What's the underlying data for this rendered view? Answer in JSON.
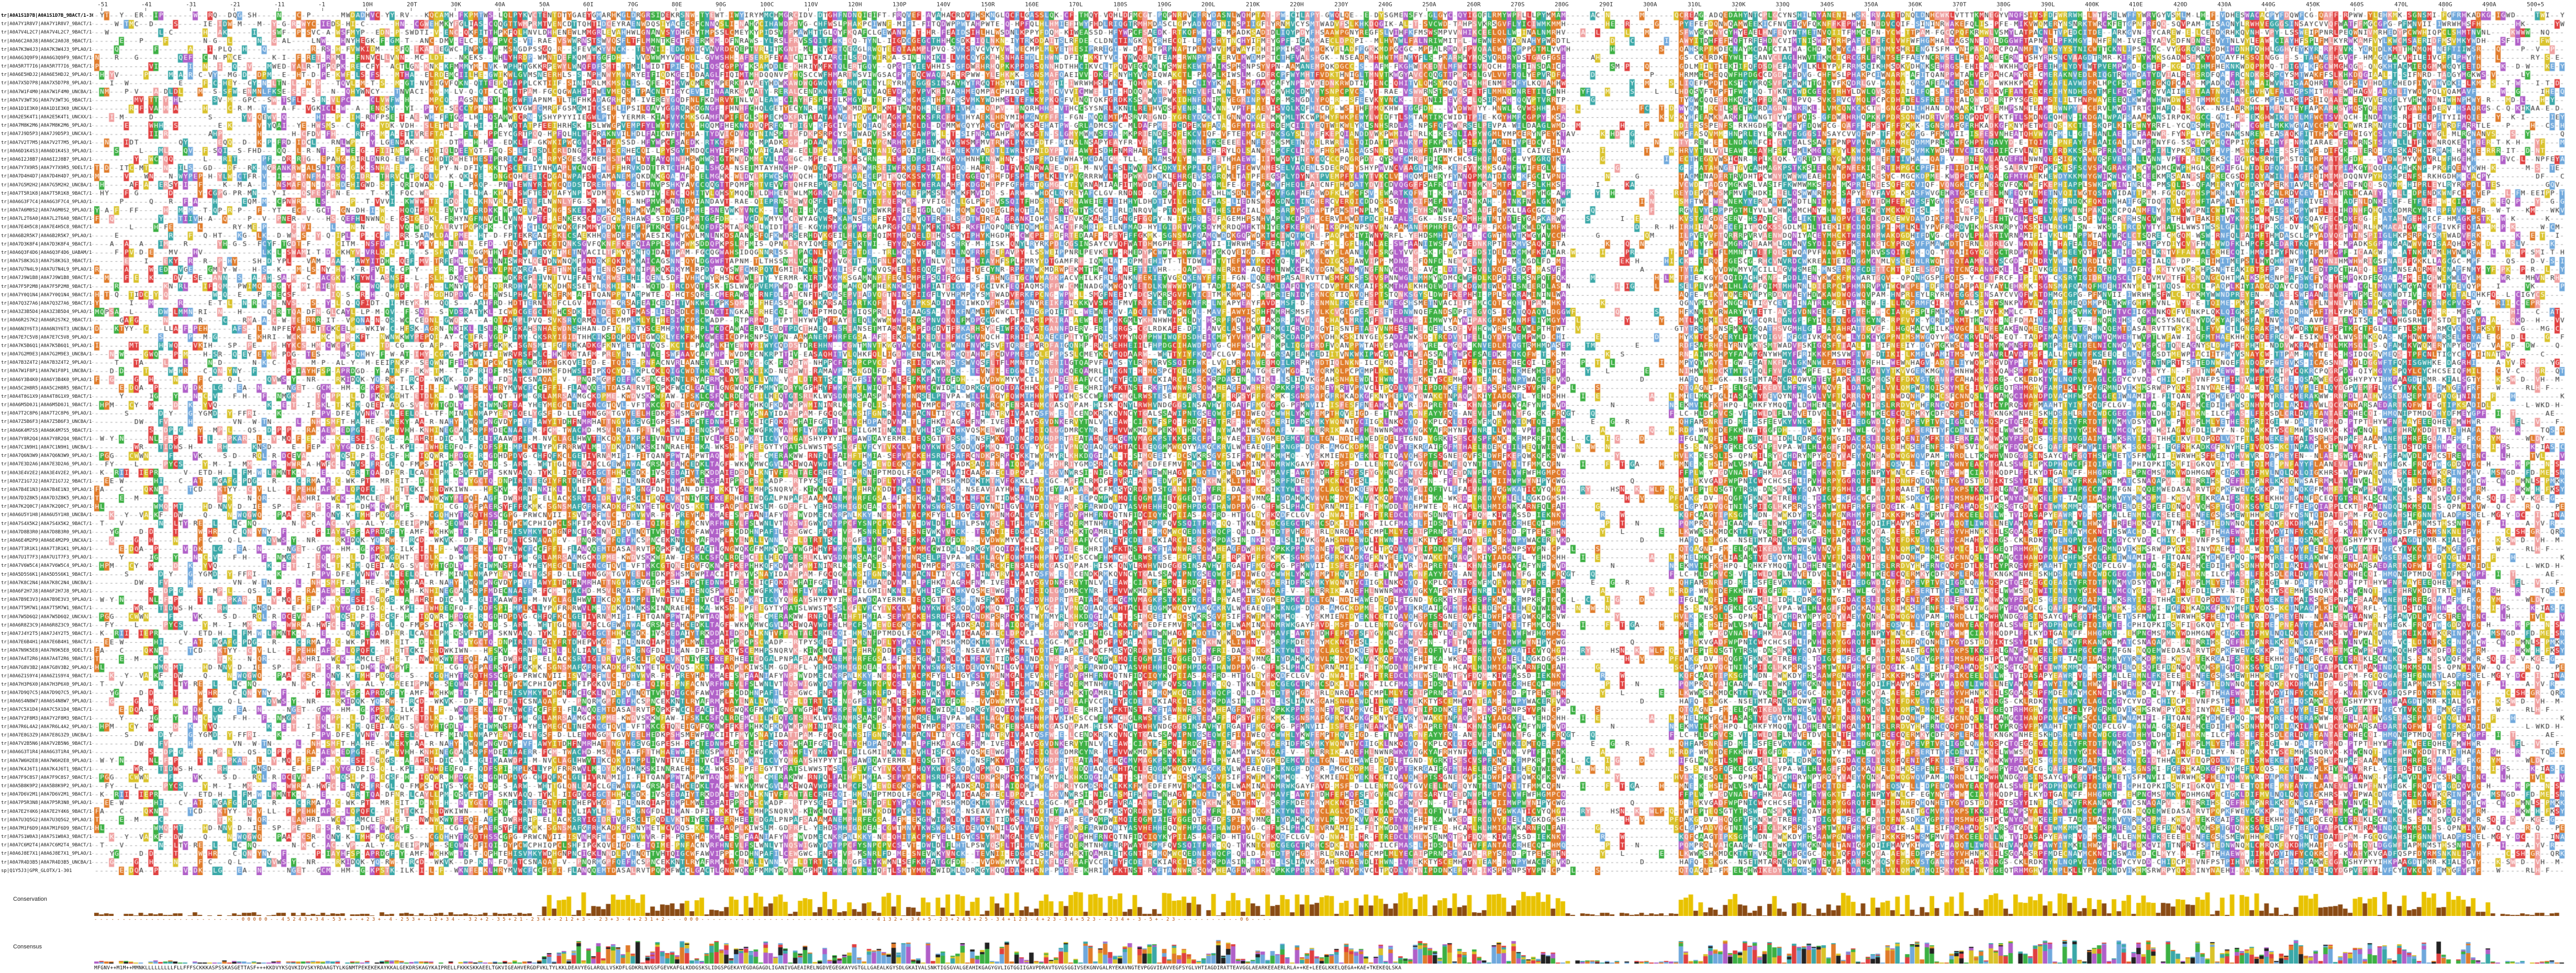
{
  "ruler": {
    "ticks": [
      "-51",
      "-41",
      "-31",
      "-21",
      "-11",
      "-1",
      "10H",
      "20T",
      "30K",
      "40A",
      "50A",
      "60I",
      "70G",
      "80E",
      "90G",
      "100C",
      "110V",
      "120H",
      "130P",
      "140V",
      "150R",
      "160E",
      "170L",
      "180S",
      "190G",
      "200L",
      "210K",
      "220H",
      "230Y",
      "240G",
      "250A",
      "260R",
      "270S",
      "280G",
      "290I",
      "300A",
      "310L",
      "320K",
      "330Q",
      "340S",
      "350A",
      "360K",
      "370T",
      "380G",
      "390L",
      "400K",
      "410E",
      "420D",
      "430A",
      "440G",
      "450K",
      "460S",
      "470L",
      "480G",
      "490A",
      "500+5"
    ]
  },
  "sequences": [
    {
      "name": "tr|A0A1S1D7B|A0A1S1D7B_9BACT/1-309",
      "ref": true
    },
    {
      "name": "tr|A0A7Y1R8V7|A0A7Y1R8V7_9BACT/1-309"
    },
    {
      "name": "tr|A0A7V4L2C7|A0A7V4L2C7_9BACT/1-324"
    },
    {
      "name": "tr|A0A6C2A0J8|A0A6C2A0J8_9BACT/1-318"
    },
    {
      "name": "tr|A0A7K3W4J3|A0A7K3W4J3_9PLAO/1-322"
    },
    {
      "name": "tr|A0A6G3Q9F9|A0A6G3Q9F9_9BACT/1-319"
    },
    {
      "name": "tr|A0A5R7T7I6|A0A5R7T7I6_9BACT/1-31"
    },
    {
      "name": "tr|A0A6E5HDJ2|A0A6E5HDJ2_9PLAO/1-318"
    },
    {
      "name": "tr|A0A7X5D7P8|A0A7X5D7P8_9PLAO/1-316"
    },
    {
      "name": "tr|A0A7W1F4M0|A0A7W1F4M0_UNCBA/1-312"
    },
    {
      "name": "tr|A0A7V3WT3G|A0A7V3WT3G_9BACT/1-340"
    },
    {
      "name": "tr|A0A1D1E3K0|A0A1D1E3K0_UNCXA/1-334"
    },
    {
      "name": "tr|A0A2E5K4T1|A0A2E5K4T1_UNCXX/1-309"
    },
    {
      "name": "tr|A0A7M8K2M6|A0A7M8K2M6_9PLAO/1-328"
    },
    {
      "name": "tr|A0A7J9D5P3|A0A7J9D5P3_UNCXA/1-307"
    },
    {
      "name": "tr|A0A7V2T7M5|A0A7V2T7M5_9PLAO/1-348"
    },
    {
      "name": "tr|A0A6D1K4S3|A0A6D1K4S3_9PLAO/1-306"
    },
    {
      "name": "tr|A0A6I2J8B7|A0A6I2J8B7_9PLAO/1-304"
    },
    {
      "name": "tr|A0A7Y7X9R5|A0A7Y7X9R5_9DELT/1-309"
    },
    {
      "name": "tr|A0A7D4H4D7|A0A7D4H4D7_9PLAO/1-343"
    },
    {
      "name": "tr|A0A7G5M2H2|A0A7G5M2H2_UNCBA/1-331"
    },
    {
      "name": "tr|A0A7T5R1K8|A0A7T5R1K8_9BACT/1-339"
    },
    {
      "name": "tr|A0A6G3F7C4|A0A6G3F7C4_9PLAO/1-335"
    },
    {
      "name": "tr|A0A7A6M0S2|A0A7A6M0S2_9PLAO/1-317"
    },
    {
      "name": "tr|A0A7L2T6A0|A0A7L2T6A0_9BACT/1-317"
    },
    {
      "name": "tr|A0A7E4H5C8|A0A7E4H5C8_9BACT/1-307"
    },
    {
      "name": "tr|A0A6B2R5K7|A0A6B2R5K7_9PLAO/1-380"
    },
    {
      "name": "tr|A0A7D3K8F4|A0A7D3K8F4_9BACT/1-348"
    },
    {
      "name": "tr|A0A6Q3F4D6|A0A6Q3F4D6_UABAM/1-335"
    },
    {
      "name": "tr|A0A7S8K3G3|A0A7S8K3G3_9BACT/1-336"
    },
    {
      "name": "tr|A0A7U7N4L9|A0A7U7N4L9_9PLAO/1-342"
    },
    {
      "name": "tr|A0A7J9W1B8|A0A7J9W1B8_9BACT/1-329"
    },
    {
      "name": "tr|A0A7F5P2M8|A0A7F5P2M8_9BACT/1-318"
    },
    {
      "name": "tr|A0A7Y0Q1N4|A0A7Y0Q1N4_9BACT/1-301"
    },
    {
      "name": "tr|A0A7Q3Z7A6|A0A7Q3Z7A6_9BACT/1-316"
    },
    {
      "name": "tr|A0A3Z3B5D4|A0A3Z3B5D4_9PLAO/1-346"
    },
    {
      "name": "tr|A0A6R2S7K2|A0A6R2S7K2_9BACT/1-340"
    },
    {
      "name": "tr|A0A6N3Y6T3|A0A6N3Y6T3_UNCBA/1-342"
    },
    {
      "name": "tr|A0A7E7C5V8|A0A7E7C5V8_9PLAO/1-301"
    },
    {
      "name": "tr|A0A7K5B6Q1|A0A7K5B6Q1_9PLAO/1-345"
    },
    {
      "name": "tr|A0A7G2M9E3|A0A7G2M9E3_UNCBA/1-301"
    },
    {
      "name": "tr|A0A7B3Z4T2|A0A7B3Z4T2_9PLAO/1-333"
    },
    {
      "name": "tr|A0A7W1F8P1|A0A7W1F8P1_UNCBA/1-306"
    },
    {
      "name": "tr|A0A6Y3B4K0|A0A6Y3B4K0_9PLAO/1-309"
    },
    {
      "name": "tr|A0A5C2H8R5|A0A5C2H8R5_9BACT/1-322"
    },
    {
      "name": "tr|A0A4T8G1X9|A0A4T8G1X9_9BACT/1-304"
    },
    {
      "name": "tr|A0A6M5D0J1|A0A6M5D0J1_9BACT/1-317"
    },
    {
      "name": "tr|A0A7T2C8P6|A0A7T2C8P6_9PLAO/1-319"
    },
    {
      "name": "tr|A0A7Z5B6F3|A0A7Z5B6F3_UNCBA/1-317"
    },
    {
      "name": "tr|A0A6K4M7S5|A0A6K4M7S5_9BACT/1-328"
    },
    {
      "name": "tr|A0A7Y8R2Q4|A0A7Y8R2Q4_9BACT/1-331"
    },
    {
      "name": "tr|A0A7C1N9H1|A0A7C1N9H1_UNCBA/1-333"
    },
    {
      "name": "tr|A0A7Q6N3W9|A0A7Q6N3W9_9PLAO/1-301"
    },
    {
      "name": "tr|A0A7E3D2A6|A0A7E3D2A6_9PLAO/1-318"
    },
    {
      "name": "tr|A0A3E4V2E2|A0A3E4V2E2_9PLAO/1-308"
    },
    {
      "name": "tr|A0A7Z1G7J2|A0A7Z1G7J2_9BACT/1-314"
    },
    {
      "name": "tr|A0A7B4E1N3|A0A7B4E1N3_9PLAO/1-326"
    },
    {
      "name": "tr|A0A7D3Z8K5|A0A7D3Z8K5_9PLAO/1-301"
    },
    {
      "name": "tr|A0A7K2Q0C7|A0A7K2Q0C7_9PLAO/1-344"
    },
    {
      "name": "tr|A0A6U5Y1H8|A0A6U5Y1H8_UNCBA/1-337"
    },
    {
      "name": "tr|A0A7S4X5K2|A0A7S4X5K2_9BACT/1-365"
    },
    {
      "name": "tr|A0A7D8B3R0|A0A7D8B3R0_9PLAO/1-315"
    },
    {
      "name": "tr|A0A6E4M2P9|A0A6E4M2P9_UNCXA/1-317"
    },
    {
      "name": "tr|A0A7T3R1K1|A0A7T3R1K1_9PLAO/1-313"
    },
    {
      "name": "tr|A0A7U1T7F3|A0A7U1T7F3_9PLAO/1-312"
    },
    {
      "name": "tr|A0A7V6W5C4|A0A7V6W5C4_9PLAO/1-328"
    },
    {
      "name": "tr|A0A5D5S6K1|A0A5D5S6K1_9BACT/1-301"
    },
    {
      "name": "tr|A0A7K8C2N4|A0A7K8C2N4_UNCBA/1-331"
    },
    {
      "name": "tr|A0A6F2H7J8|A0A6F2H7J8_9PLAO/1-307"
    },
    {
      "name": "tr|A0A7B9E3V3|A0A7B9E3V3_9PLAO/1-312"
    },
    {
      "name": "tr|A0A7T5M7W1|A0A7T5M7W1_9BACT/1-313"
    },
    {
      "name": "tr|A0A7W5D6Q2|A0A7W5D6Q2_UNCXA/1-315"
    },
    {
      "name": "tr|A0A6R8Z3C9|A0A6R8Z3C9_9BACT/1-310"
    },
    {
      "name": "tr|A0A7J4Y2T5|A0A7J4Y2T5_9BACT/1-309"
    },
    {
      "name": "tr|A0A7E6B4H1|A0A7E6B4H1_9BACT/1-323"
    },
    {
      "name": "tr|A0A7N9K5E8|A0A7N9K5E8_9DELT/1-311"
    },
    {
      "name": "tr|A0A7A4T2R6|A0A7A4T2R6_9BACT/1-316"
    },
    {
      "name": "tr|A0A7G8V3B2|A0A7G8V3B2_9PLAO/1-313"
    },
    {
      "name": "tr|A0A6Z1S9Y4|A0A6Z1S9Y4_9BACT/1-322"
    },
    {
      "name": "tr|A0A7H3P6X0|A0A7H3P6X0_9PLAO/1-331"
    },
    {
      "name": "tr|A0A7D9Q7C5|A0A7D9Q7C5_9PLAO/1-308"
    },
    {
      "name": "tr|A0A6S4N8W7|A0A6S4N8W7_9PLAO/1-319"
    },
    {
      "name": "tr|A0A7C5X1D4|A0A7C5X1D4_9BACT/1-309"
    },
    {
      "name": "tr|A0A7Y2F8M3|A0A7Y2F8M3_9BACT/1-311"
    },
    {
      "name": "tr|A0A7R6L4A2|A0A7R6L4A2_9PLAO/1-301"
    },
    {
      "name": "tr|A0A7E8G3Z9|A0A7E8G3Z9_UNCBA/1-317"
    },
    {
      "name": "tr|A0A7V2B5N6|A0A7V2B5N6_9BACT/1-309"
    },
    {
      "name": "tr|A0A6G3T1R4|A0A6G3T1R4_9PLAO/1-307"
    },
    {
      "name": "tr|A0A7W6H2E8|A0A7W6H2E8_9PLAO/1-317"
    },
    {
      "name": "tr|A0A7K4J6T1|A0A7K4J6T1_9BACT/1-313"
    },
    {
      "name": "tr|A0A7F9C8S7|A0A7F9C8S7_9BACT/1-348"
    },
    {
      "name": "tr|A0A5B8K9P2|A0A5B8K9P2_9PLAO/1-316"
    },
    {
      "name": "tr|A0A7D6V2M1|A0A7D6V2M1_9BACT/1-309"
    },
    {
      "name": "tr|A0A7P5R3N8|A0A7P5R3N8_9PLAO/1-311"
    },
    {
      "name": "tr|A0A7E2Y4K6|A0A7E2Y4K6_9BACT/1-315"
    },
    {
      "name": "tr|A0A7U3Q5G2|A0A7U3Q5G2_9PLAO/1-328"
    },
    {
      "name": "tr|A0A7M1F6D9|A0A7M1F6D9_9BACT/1-320"
    },
    {
      "name": "tr|A0A7S1W0A3|A0A7S1W0A3_9BACT/1-331"
    },
    {
      "name": "tr|A0A7C6M2T4|A0A7C6M2T4_9BACT/1-301"
    },
    {
      "name": "tr|A0A6J8E7X1|A0A6J8E7X1_9PLAO/1-318"
    },
    {
      "name": "tr|A0A7R4D3B5|A0A7R4D3B5_UNCBA/1-301"
    },
    {
      "name": "sp|Q1Y5J3|GPR_GLOTX/1-301"
    }
  ],
  "annotations": {
    "conservation_label": "Conservation",
    "consensus_label": "Consensus",
    "conservation_values": "- - - - - - - - - - - - - - - - - - - - - - - - - - 0 0 0 0 0 - - 4 5 2 4 3 + 3 4 - 5 3 + + - + 2 3 + - 4 - 2 5 3 + - 1 2 + 3 4 - - 3 2 + 2 - 3 5 + 2 1 - 2 3 4 + - 2 1 2 + 3 - - 2 3 + 3 - 4 + 2 3 1 + 2 - - - 0 0 0 - - - - - - - - - - - - - - - - - - - - - - - - - - - - - - - 4 1 3 2 + - 3 4 + 5 - 2 3 + 2 4 3 + 2 5 - 3 4 + 1 2 3 - 4 + 2 3 - 3 4 + 5 2 3 - - 2 3 4 + - 3 - 5 + - 2 3 - - - - - - - - - - - 0 6 - - - -",
    "consensus_sequence": "MFGNV++M1M++MMNKLLLLLLLLLFLLFFFSCKKKASPSSKASGETTASF+++KKDVYKSQVKIDVSKYRDAAGTYLKGNMTPEKEKEKAYKKALGEKDRSKAGYKAIPRELLFKKKSKKAEELTGKVIGEAHVERGDFVKLTYLKKLDEAVYEGLARQLLVSKDFLGDKRLNVGSFGEVKAFGLKDDGSKSLIDGSPGEKAYEGDAGAGDLIGANIVGAEAIRELNGDVEGEGKAYVGTGLLGAEALKGYSDLGKAIVALSNKTIGSGVALGEAHIKGAGYGVLIGTGGIIGAVPDRAVTGVGSGGIVSEKGNVGALRYEKAVNGTEVPGGVIEAVVEGFSYGLVHTIAGDIRATTEAVGGLAEARKEEAERLRLA++KE+LEEGLKKELQEGA+KAE+TKEKEQLSKA"
  },
  "colors": {
    "hydrophobic": "#6fa8dc",
    "positive": "#e04040",
    "negative": "#b05fc8",
    "polar": "#3cb043",
    "glycine": "#e07b2a",
    "proline": "#d9c22a",
    "aromatic": "#3aa8a8",
    "cysteine": "#f0a0a0",
    "conservation_bar": "#e8c200",
    "conservation_low": "#8a4b14"
  }
}
